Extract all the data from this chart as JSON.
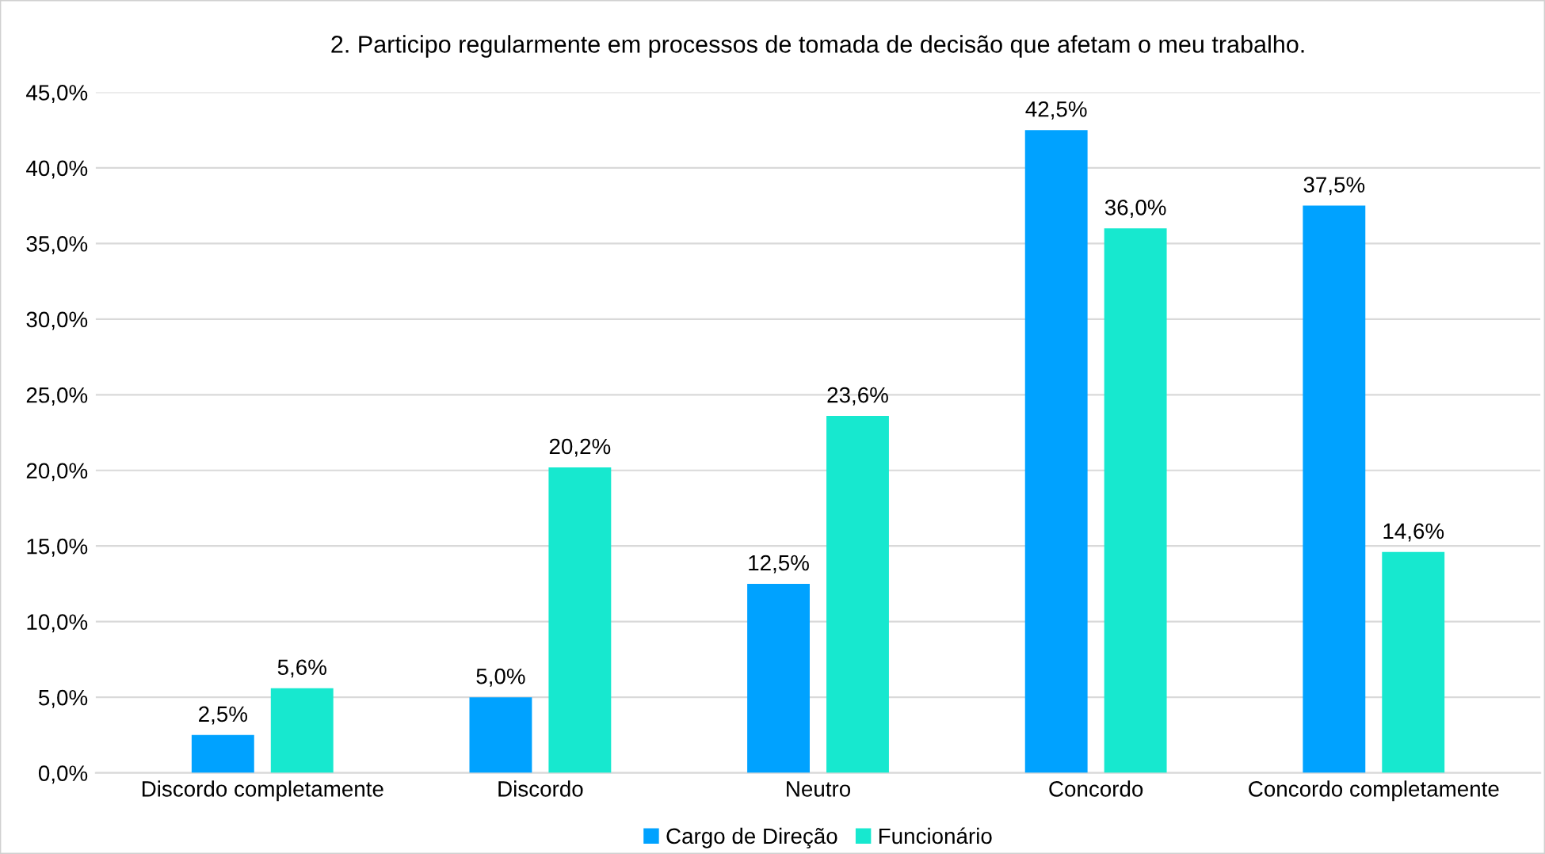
{
  "chart_data": {
    "type": "bar",
    "title": "2. Participo regularmente em processos de tomada de decisão que afetam o meu trabalho.",
    "categories": [
      "Discordo completamente",
      "Discordo",
      "Neutro",
      "Concordo",
      "Concordo completamente"
    ],
    "series": [
      {
        "name": "Cargo de Direção",
        "color": "#00a2ff",
        "values": [
          2.5,
          5.0,
          12.5,
          42.5,
          37.5
        ],
        "value_labels": [
          "2,5%",
          "5,0%",
          "12,5%",
          "42,5%",
          "37,5%"
        ]
      },
      {
        "name": "Funcionário",
        "color": "#17e8cf",
        "values": [
          5.6,
          20.2,
          23.6,
          36.0,
          14.6
        ],
        "value_labels": [
          "5,6%",
          "20,2%",
          "23,6%",
          "36,0%",
          "14,6%"
        ]
      }
    ],
    "ylim": [
      0,
      45
    ],
    "yticks": [
      {
        "value": 0,
        "label": "0,0%"
      },
      {
        "value": 5,
        "label": "5,0%"
      },
      {
        "value": 10,
        "label": "10,0%"
      },
      {
        "value": 15,
        "label": "15,0%"
      },
      {
        "value": 20,
        "label": "20,0%"
      },
      {
        "value": 25,
        "label": "25,0%"
      },
      {
        "value": 30,
        "label": "30,0%"
      },
      {
        "value": 35,
        "label": "35,0%"
      },
      {
        "value": 40,
        "label": "40,0%"
      },
      {
        "value": 45,
        "label": "45,0%"
      }
    ],
    "grid": "y",
    "legend": "bottom"
  }
}
